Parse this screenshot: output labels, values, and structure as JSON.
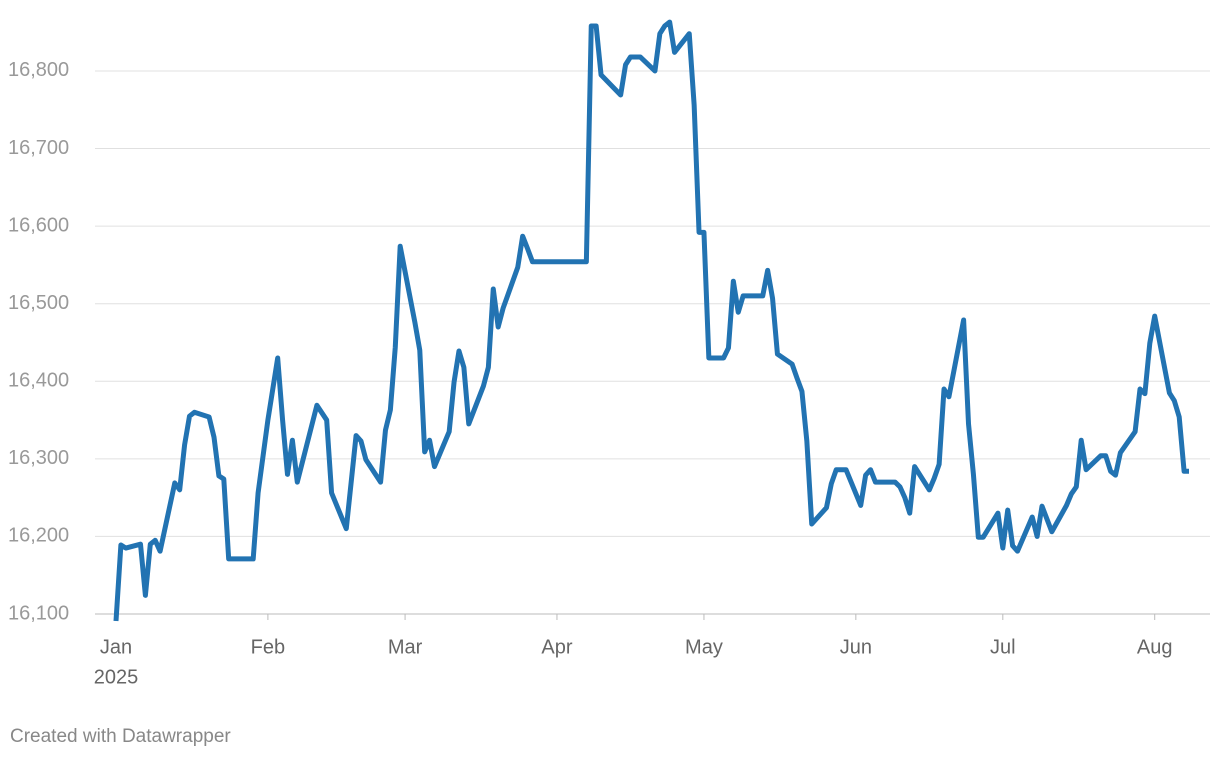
{
  "chart_data": {
    "type": "line",
    "x": [
      0,
      1,
      2,
      5,
      6,
      7,
      8,
      9,
      12,
      13,
      14,
      15,
      16,
      19,
      20,
      21,
      22,
      23,
      28,
      29,
      31,
      33,
      34,
      35,
      36,
      37,
      41,
      43,
      44,
      47,
      49,
      50,
      51,
      54,
      55,
      56,
      57,
      58,
      61,
      62,
      63,
      64,
      65,
      68,
      69,
      70,
      71,
      72,
      75,
      76,
      77,
      78,
      79,
      82,
      83,
      84,
      85,
      96,
      97,
      98,
      99,
      103,
      104,
      105,
      107,
      110,
      111,
      112,
      113,
      114,
      117,
      118,
      119,
      120,
      121,
      124,
      125,
      126,
      127,
      128,
      132,
      133,
      134,
      135,
      138,
      139,
      140,
      141,
      142,
      145,
      146,
      147,
      149,
      152,
      153,
      154,
      155,
      159,
      160,
      161,
      162,
      163,
      166,
      167,
      168,
      169,
      170,
      173,
      174,
      175,
      176,
      177,
      180,
      181,
      182,
      183,
      184,
      187,
      188,
      189,
      191,
      194,
      195,
      196,
      197,
      198,
      201,
      202,
      203,
      204,
      205,
      208,
      209,
      210,
      211,
      212,
      215,
      216,
      217,
      218,
      219
    ],
    "series": [
      {
        "color": "#2273b2",
        "values": [
          16091,
          16189,
          16185,
          16190,
          16124,
          16190,
          16195,
          16181,
          16269,
          16260,
          16318,
          16355,
          16360,
          16354,
          16328,
          16278,
          16274,
          16171,
          16171,
          16256,
          16350,
          16430,
          16350,
          16280,
          16324,
          16270,
          16369,
          16350,
          16256,
          16210,
          16330,
          16323,
          16299,
          16270,
          16337,
          16363,
          16444,
          16574,
          16476,
          16440,
          16309,
          16324,
          16290,
          16335,
          16399,
          16439,
          16418,
          16345,
          16394,
          16418,
          16519,
          16470,
          16494,
          16547,
          16587,
          16571,
          16554,
          16554,
          16858,
          16858,
          16795,
          16769,
          16808,
          16818,
          16818,
          16800,
          16848,
          16858,
          16863,
          16824,
          16848,
          16756,
          16592,
          16592,
          16430,
          16430,
          16443,
          16529,
          16489,
          16510,
          16510,
          16543,
          16507,
          16435,
          16422,
          16404,
          16387,
          16323,
          16216,
          16237,
          16268,
          16286,
          16286,
          16240,
          16279,
          16286,
          16270,
          16270,
          16264,
          16250,
          16230,
          16290,
          16260,
          16275,
          16293,
          16390,
          16380,
          16479,
          16345,
          16280,
          16199,
          16199,
          16230,
          16185,
          16234,
          16188,
          16181,
          16225,
          16200,
          16239,
          16206,
          16240,
          16255,
          16264,
          16324,
          16286,
          16304,
          16304,
          16284,
          16279,
          16308,
          16335,
          16390,
          16384,
          16449,
          16484,
          16385,
          16375,
          16354,
          16284,
          16284
        ]
      }
    ],
    "xlim": [
      0,
      219
    ],
    "xticks": [
      {
        "value": 0,
        "label": "Jan"
      },
      {
        "value": 31,
        "label": "Feb"
      },
      {
        "value": 59,
        "label": "Mar"
      },
      {
        "value": 90,
        "label": "Apr"
      },
      {
        "value": 120,
        "label": "May"
      },
      {
        "value": 151,
        "label": "Jun"
      },
      {
        "value": 181,
        "label": "Jul"
      },
      {
        "value": 212,
        "label": "Aug"
      }
    ],
    "x_year_label": "2025",
    "ylim": [
      16100,
      16876
    ],
    "yticks": [
      {
        "value": 16100,
        "label": "16,100"
      },
      {
        "value": 16200,
        "label": "16,200"
      },
      {
        "value": 16300,
        "label": "16,300"
      },
      {
        "value": 16400,
        "label": "16,400"
      },
      {
        "value": 16500,
        "label": "16,500"
      },
      {
        "value": 16600,
        "label": "16,600"
      },
      {
        "value": 16700,
        "label": "16,700"
      },
      {
        "value": 16800,
        "label": "16,800"
      }
    ],
    "grid": true,
    "footer": "Created with Datawrapper"
  }
}
